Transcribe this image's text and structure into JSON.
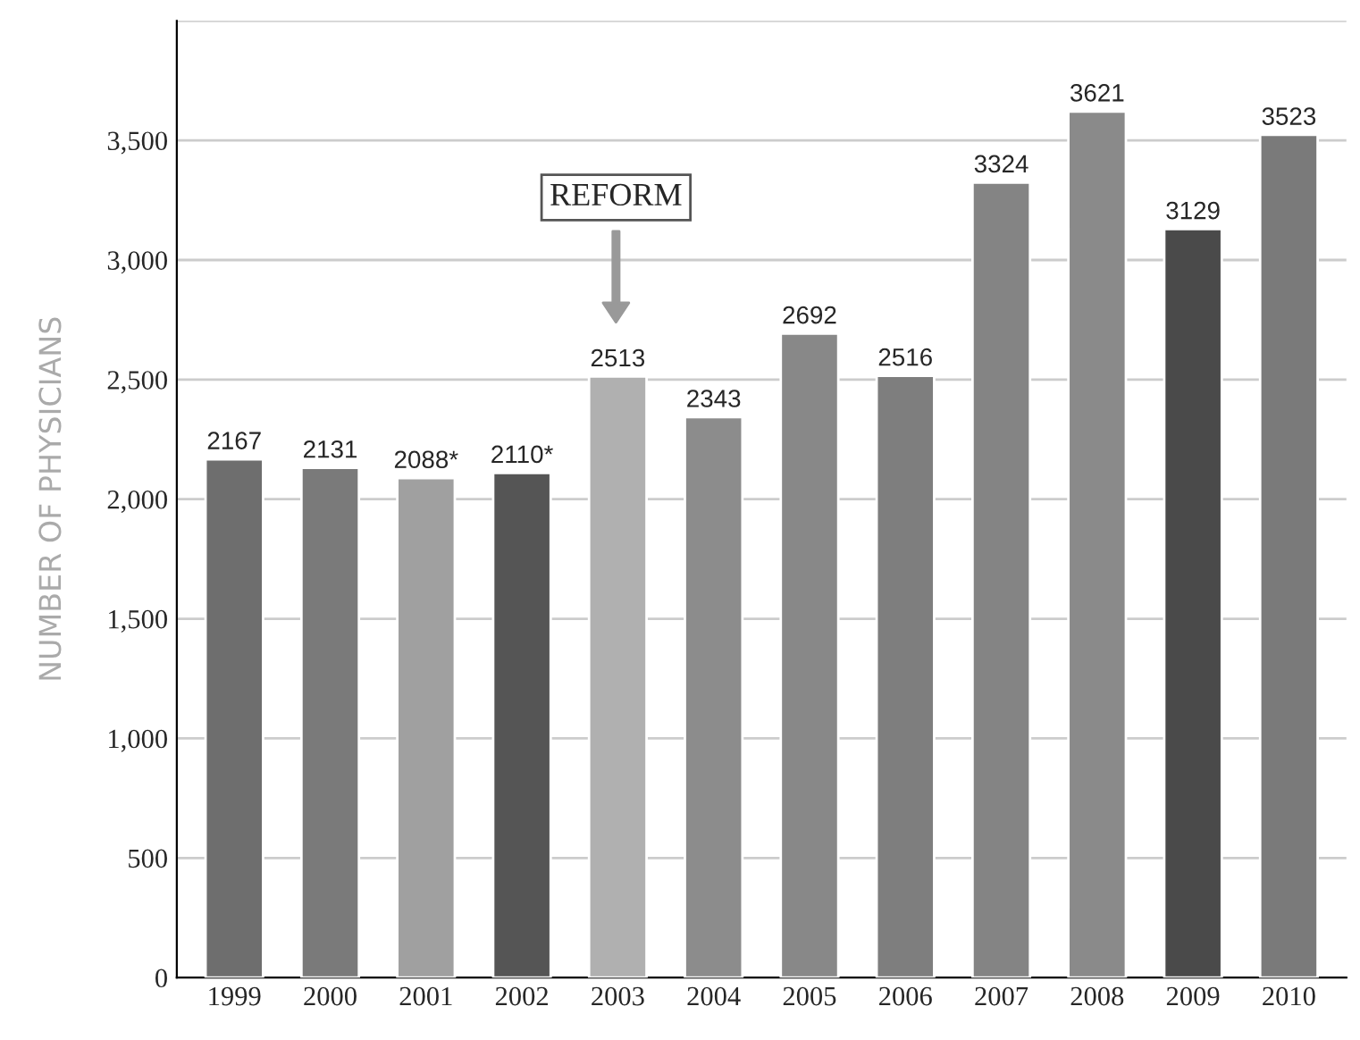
{
  "chart_data": {
    "type": "bar",
    "ylabel": "NUMBER OF PHYSICIANS",
    "categories": [
      "1999",
      "2000",
      "2001",
      "2002",
      "2003",
      "2004",
      "2005",
      "2006",
      "2007",
      "2008",
      "2009",
      "2010"
    ],
    "values": [
      2167,
      2131,
      2088,
      2110,
      2513,
      2343,
      2692,
      2516,
      3324,
      3621,
      3129,
      3523
    ],
    "value_labels": [
      "2167",
      "2131",
      "2088*",
      "2110*",
      "2513",
      "2343",
      "2692",
      "2516",
      "3324",
      "3621",
      "3129",
      "3523"
    ],
    "colors": [
      "#6e6e6e",
      "#7a7a7a",
      "#a0a0a0",
      "#555555",
      "#b0b0b0",
      "#8c8c8c",
      "#888888",
      "#7e7e7e",
      "#848484",
      "#8a8a8a",
      "#4a4a4a",
      "#7a7a7a"
    ],
    "ylim": [
      0,
      4000
    ],
    "yticks": [
      0,
      {
        "value": 500,
        "label": "500"
      },
      {
        "value": 1000,
        "label": "1,000"
      },
      {
        "value": 1500,
        "label": "1,500"
      },
      {
        "value": 2000,
        "label": "2,000"
      },
      {
        "value": 2500,
        "label": "2,500"
      },
      {
        "value": 3000,
        "label": "3,000"
      },
      {
        "value": 3500,
        "label": "3,500"
      },
      {
        "value": 4000,
        "label": null
      }
    ],
    "grid": "y",
    "annotations": [
      "REFORM"
    ]
  }
}
